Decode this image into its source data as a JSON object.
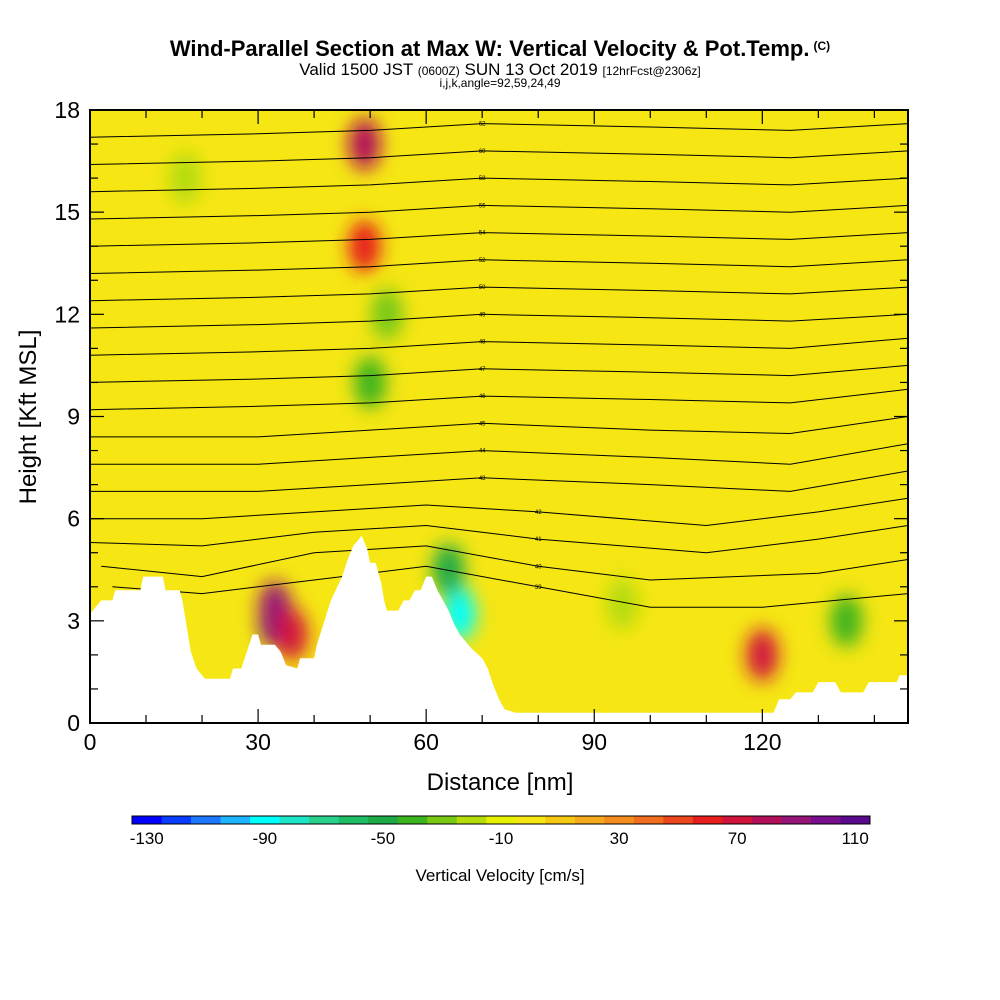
{
  "title": {
    "main": "Wind-Parallel Section at Max W: Vertical Velocity & Pot.Temp.",
    "copyright": "(C)",
    "valid_prefix": "Valid 1500 JST",
    "valid_utc": "(0600Z)",
    "valid_date": "SUN 13 Oct 2019",
    "forecast": "[12hrFcst@2306z]",
    "params": "i,j,k,angle=92,59,24,49"
  },
  "colors": {
    "frame": "#000000",
    "terrain": "#ffffff",
    "background_field": "#f5e614"
  },
  "chart_data": {
    "type": "heatmap",
    "xlabel": "Distance [nm]",
    "ylabel": "Height [Kft MSL]",
    "xlim": [
      0,
      146
    ],
    "ylim": [
      0,
      18
    ],
    "x_ticks": [
      "0",
      "30",
      "60",
      "90",
      "120"
    ],
    "x_tick_values": [
      0,
      30,
      60,
      90,
      120
    ],
    "y_ticks": [
      "0",
      "3",
      "6",
      "9",
      "12",
      "15",
      "18"
    ],
    "y_tick_values": [
      0,
      3,
      6,
      9,
      12,
      15,
      18
    ],
    "colorbar": {
      "label": "Vertical Velocity [cm/s]",
      "tick_labels": [
        "-130",
        "-90",
        "-50",
        "-10",
        "30",
        "70",
        "110"
      ],
      "tick_values": [
        -130,
        -90,
        -50,
        -10,
        30,
        70,
        110
      ],
      "range": [
        -135,
        115
      ],
      "colors": [
        "#0000ff",
        "#0a3cff",
        "#1e78ff",
        "#1eb4ff",
        "#00ffff",
        "#1ee6c8",
        "#28d28c",
        "#1ebe64",
        "#1eaa46",
        "#3cb41e",
        "#78c814",
        "#b4dc0a",
        "#e6f000",
        "#f5e614",
        "#f5c814",
        "#f5aa1e",
        "#f58c1e",
        "#f06e1e",
        "#eb461e",
        "#e61e1e",
        "#d2143c",
        "#b40f5a",
        "#961478",
        "#780f8c",
        "#5a0a8c"
      ]
    },
    "terrain_profile": [
      [
        0,
        3.2
      ],
      [
        2,
        3.6
      ],
      [
        4,
        3.6
      ],
      [
        4.5,
        3.9
      ],
      [
        9,
        3.9
      ],
      [
        9.5,
        4.3
      ],
      [
        13,
        4.3
      ],
      [
        13.5,
        3.9
      ],
      [
        16,
        3.9
      ],
      [
        16.5,
        3.6
      ],
      [
        17,
        3.1
      ],
      [
        17.5,
        2.6
      ],
      [
        18,
        2.1
      ],
      [
        19,
        1.6
      ],
      [
        20.5,
        1.3
      ],
      [
        25,
        1.3
      ],
      [
        25.5,
        1.6
      ],
      [
        27,
        1.6
      ],
      [
        28,
        2.1
      ],
      [
        29,
        2.6
      ],
      [
        30,
        2.6
      ],
      [
        30.5,
        2.3
      ],
      [
        33,
        2.3
      ],
      [
        34,
        2.1
      ],
      [
        35,
        1.7
      ],
      [
        37,
        1.6
      ],
      [
        37.5,
        1.9
      ],
      [
        40,
        1.9
      ],
      [
        40.5,
        2.3
      ],
      [
        43,
        3.6
      ],
      [
        45,
        4.3
      ],
      [
        46,
        4.8
      ],
      [
        47,
        5.2
      ],
      [
        48.5,
        5.5
      ],
      [
        49.5,
        5.1
      ],
      [
        50,
        4.7
      ],
      [
        51,
        4.7
      ],
      [
        52,
        4.1
      ],
      [
        52.5,
        3.6
      ],
      [
        53,
        3.3
      ],
      [
        55,
        3.3
      ],
      [
        56,
        3.6
      ],
      [
        57,
        3.6
      ],
      [
        58,
        3.9
      ],
      [
        59,
        3.9
      ],
      [
        60,
        4.3
      ],
      [
        61,
        4.3
      ],
      [
        62,
        3.9
      ],
      [
        63,
        3.6
      ],
      [
        64,
        3.3
      ],
      [
        65,
        2.9
      ],
      [
        66,
        2.6
      ],
      [
        68,
        2.2
      ],
      [
        70,
        1.9
      ],
      [
        71,
        1.6
      ],
      [
        72,
        1.1
      ],
      [
        73,
        0.7
      ],
      [
        74,
        0.4
      ],
      [
        76,
        0.3
      ],
      [
        122,
        0.3
      ],
      [
        123,
        0.7
      ],
      [
        125,
        0.7
      ],
      [
        126,
        0.9
      ],
      [
        129,
        0.9
      ],
      [
        130,
        1.2
      ],
      [
        133,
        1.2
      ],
      [
        134,
        0.9
      ],
      [
        138,
        0.9
      ],
      [
        139,
        1.2
      ],
      [
        144,
        1.2
      ],
      [
        144.5,
        1.4
      ],
      [
        146,
        1.4
      ]
    ],
    "velocity_cells": [
      {
        "x": 33,
        "y": 3,
        "value": 110
      },
      {
        "x": 33,
        "y": 3.4,
        "value": 90
      },
      {
        "x": 36,
        "y": 2.6,
        "value": 70
      },
      {
        "x": 49,
        "y": 14,
        "value": 60
      },
      {
        "x": 49,
        "y": 17,
        "value": 80
      },
      {
        "x": 50,
        "y": 10,
        "value": -40
      },
      {
        "x": 53,
        "y": 12,
        "value": -30
      },
      {
        "x": 66,
        "y": 3.2,
        "value": -90
      },
      {
        "x": 64,
        "y": 4.5,
        "value": -50
      },
      {
        "x": 120,
        "y": 2,
        "value": 70
      },
      {
        "x": 135,
        "y": 3,
        "value": -40
      },
      {
        "x": 17,
        "y": 16,
        "value": -20
      },
      {
        "x": 95,
        "y": 3.5,
        "value": -20
      }
    ],
    "isentropes": [
      {
        "label": "39",
        "points": [
          [
            4,
            4
          ],
          [
            20,
            3.8
          ],
          [
            40,
            4.2
          ],
          [
            60,
            4.6
          ],
          [
            80,
            4.0
          ],
          [
            100,
            3.4
          ],
          [
            120,
            3.4
          ],
          [
            146,
            3.8
          ]
        ]
      },
      {
        "label": "40",
        "points": [
          [
            2,
            4.6
          ],
          [
            20,
            4.3
          ],
          [
            40,
            5.0
          ],
          [
            60,
            5.2
          ],
          [
            80,
            4.6
          ],
          [
            100,
            4.2
          ],
          [
            130,
            4.4
          ],
          [
            146,
            4.8
          ]
        ]
      },
      {
        "label": "41",
        "points": [
          [
            0,
            5.3
          ],
          [
            20,
            5.2
          ],
          [
            40,
            5.6
          ],
          [
            60,
            5.8
          ],
          [
            80,
            5.4
          ],
          [
            110,
            5.0
          ],
          [
            130,
            5.4
          ],
          [
            146,
            5.8
          ]
        ]
      },
      {
        "label": "42",
        "points": [
          [
            0,
            6.0
          ],
          [
            20,
            6.0
          ],
          [
            40,
            6.2
          ],
          [
            60,
            6.4
          ],
          [
            80,
            6.2
          ],
          [
            110,
            5.8
          ],
          [
            130,
            6.2
          ],
          [
            146,
            6.6
          ]
        ]
      },
      {
        "label": "43",
        "points": [
          [
            0,
            6.8
          ],
          [
            30,
            6.8
          ],
          [
            50,
            7.0
          ],
          [
            70,
            7.2
          ],
          [
            100,
            7.0
          ],
          [
            125,
            6.8
          ],
          [
            146,
            7.4
          ]
        ]
      },
      {
        "label": "44",
        "points": [
          [
            0,
            7.6
          ],
          [
            30,
            7.6
          ],
          [
            50,
            7.8
          ],
          [
            70,
            8.0
          ],
          [
            100,
            7.8
          ],
          [
            125,
            7.6
          ],
          [
            146,
            8.2
          ]
        ]
      },
      {
        "label": "45",
        "points": [
          [
            0,
            8.4
          ],
          [
            30,
            8.4
          ],
          [
            50,
            8.6
          ],
          [
            70,
            8.8
          ],
          [
            100,
            8.6
          ],
          [
            125,
            8.5
          ],
          [
            146,
            9.0
          ]
        ]
      },
      {
        "label": "46",
        "points": [
          [
            0,
            9.2
          ],
          [
            30,
            9.3
          ],
          [
            50,
            9.4
          ],
          [
            70,
            9.6
          ],
          [
            100,
            9.5
          ],
          [
            125,
            9.4
          ],
          [
            146,
            9.8
          ]
        ]
      },
      {
        "label": "47",
        "points": [
          [
            0,
            10.0
          ],
          [
            30,
            10.1
          ],
          [
            50,
            10.2
          ],
          [
            70,
            10.4
          ],
          [
            100,
            10.3
          ],
          [
            125,
            10.2
          ],
          [
            146,
            10.5
          ]
        ]
      },
      {
        "label": "48",
        "points": [
          [
            0,
            10.8
          ],
          [
            30,
            10.9
          ],
          [
            50,
            11.0
          ],
          [
            70,
            11.2
          ],
          [
            100,
            11.1
          ],
          [
            125,
            11.0
          ],
          [
            146,
            11.3
          ]
        ]
      },
      {
        "label": "49",
        "points": [
          [
            0,
            11.6
          ],
          [
            30,
            11.7
          ],
          [
            50,
            11.8
          ],
          [
            70,
            12.0
          ],
          [
            100,
            11.9
          ],
          [
            125,
            11.8
          ],
          [
            146,
            12.0
          ]
        ]
      },
      {
        "label": "50",
        "points": [
          [
            0,
            12.4
          ],
          [
            30,
            12.5
          ],
          [
            50,
            12.6
          ],
          [
            70,
            12.8
          ],
          [
            100,
            12.7
          ],
          [
            125,
            12.6
          ],
          [
            146,
            12.8
          ]
        ]
      },
      {
        "label": "52",
        "points": [
          [
            0,
            13.2
          ],
          [
            30,
            13.3
          ],
          [
            50,
            13.4
          ],
          [
            70,
            13.6
          ],
          [
            100,
            13.5
          ],
          [
            125,
            13.4
          ],
          [
            146,
            13.6
          ]
        ]
      },
      {
        "label": "54",
        "points": [
          [
            0,
            14.0
          ],
          [
            30,
            14.1
          ],
          [
            50,
            14.2
          ],
          [
            70,
            14.4
          ],
          [
            100,
            14.3
          ],
          [
            125,
            14.2
          ],
          [
            146,
            14.4
          ]
        ]
      },
      {
        "label": "56",
        "points": [
          [
            0,
            14.8
          ],
          [
            30,
            14.9
          ],
          [
            50,
            15.0
          ],
          [
            70,
            15.2
          ],
          [
            100,
            15.1
          ],
          [
            125,
            15.0
          ],
          [
            146,
            15.2
          ]
        ]
      },
      {
        "label": "58",
        "points": [
          [
            0,
            15.6
          ],
          [
            30,
            15.7
          ],
          [
            50,
            15.8
          ],
          [
            70,
            16.0
          ],
          [
            100,
            15.9
          ],
          [
            125,
            15.8
          ],
          [
            146,
            16.0
          ]
        ]
      },
      {
        "label": "60",
        "points": [
          [
            0,
            16.4
          ],
          [
            30,
            16.5
          ],
          [
            50,
            16.6
          ],
          [
            70,
            16.8
          ],
          [
            100,
            16.7
          ],
          [
            125,
            16.6
          ],
          [
            146,
            16.8
          ]
        ]
      },
      {
        "label": "62",
        "points": [
          [
            0,
            17.2
          ],
          [
            30,
            17.3
          ],
          [
            50,
            17.4
          ],
          [
            70,
            17.6
          ],
          [
            100,
            17.5
          ],
          [
            125,
            17.4
          ],
          [
            146,
            17.6
          ]
        ]
      }
    ]
  }
}
